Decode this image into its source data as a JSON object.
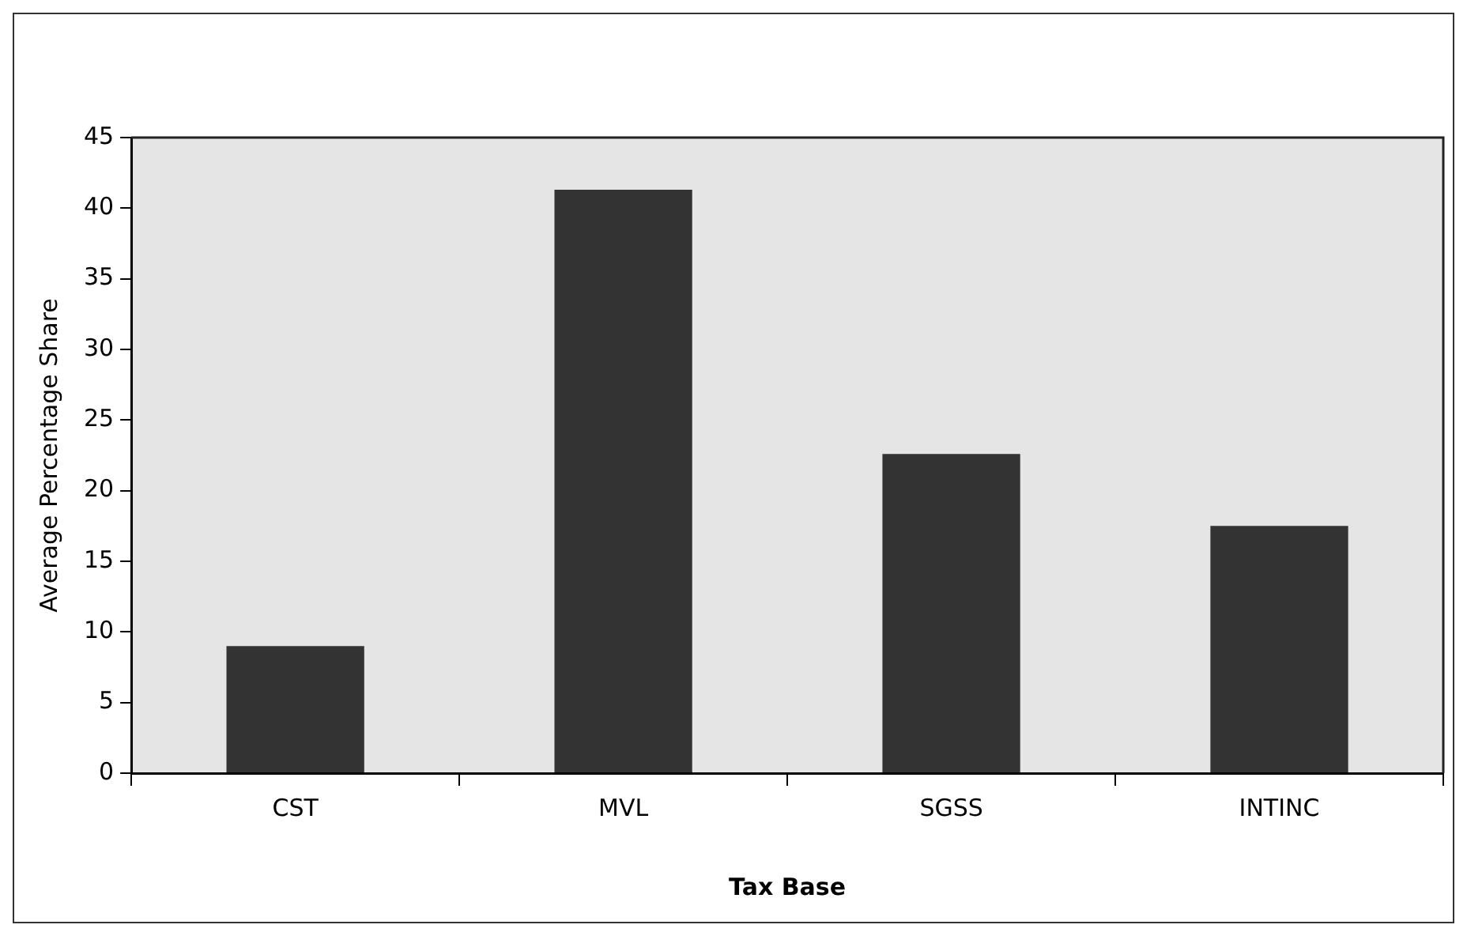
{
  "chart_data": {
    "type": "bar",
    "xlabel": "Tax Base",
    "ylabel": "Average Percentage Share",
    "categories": [
      "CST",
      "MVL",
      "SGSS",
      "INTINC"
    ],
    "values": [
      9.0,
      41.3,
      22.6,
      17.5
    ],
    "color": "#333333",
    "ylim": [
      0,
      45
    ],
    "yticks": [
      0,
      5,
      10,
      15,
      20,
      25,
      30,
      35,
      40,
      45
    ],
    "grid": false,
    "legend": false
  }
}
